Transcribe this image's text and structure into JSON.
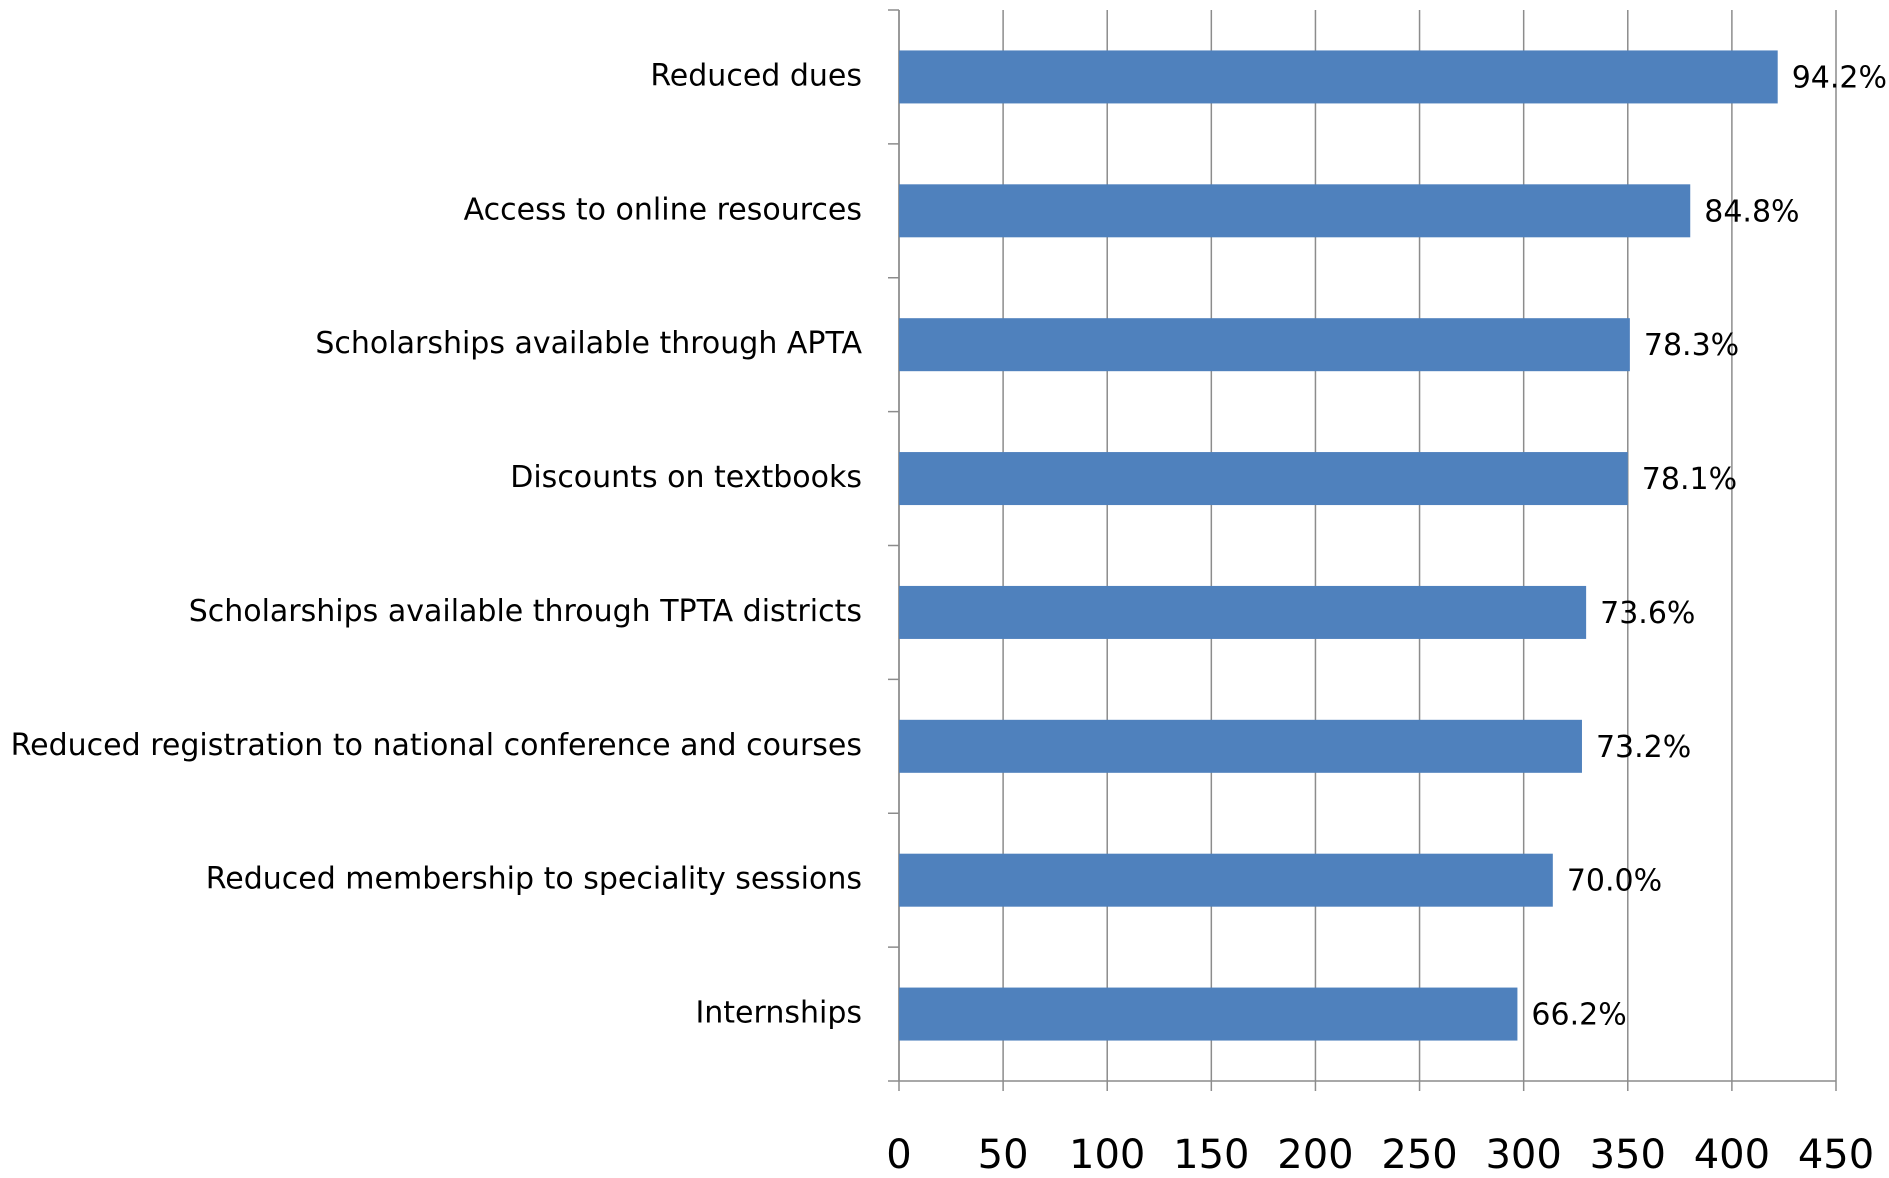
{
  "chart_data": {
    "type": "bar",
    "orientation": "horizontal",
    "categories": [
      "Reduced dues",
      "Access to online resources",
      "Scholarships available through APTA",
      "Discounts on textbooks",
      "Scholarships available through TPTA districts",
      "Reduced registration to national conference and courses",
      "Reduced membership to speciality sessions",
      "Internships"
    ],
    "values": [
      422,
      380,
      351,
      350,
      330,
      328,
      314,
      297
    ],
    "percent_labels": [
      "94.2%",
      "84.8%",
      "78.3%",
      "78.1%",
      "73.6%",
      "73.2%",
      "70.0%",
      "66.2%"
    ],
    "color": "#4f81bd",
    "xlim": [
      0,
      450
    ],
    "xticks": [
      0,
      50,
      100,
      150,
      200,
      250,
      300,
      350,
      400,
      450
    ],
    "grid": true
  }
}
